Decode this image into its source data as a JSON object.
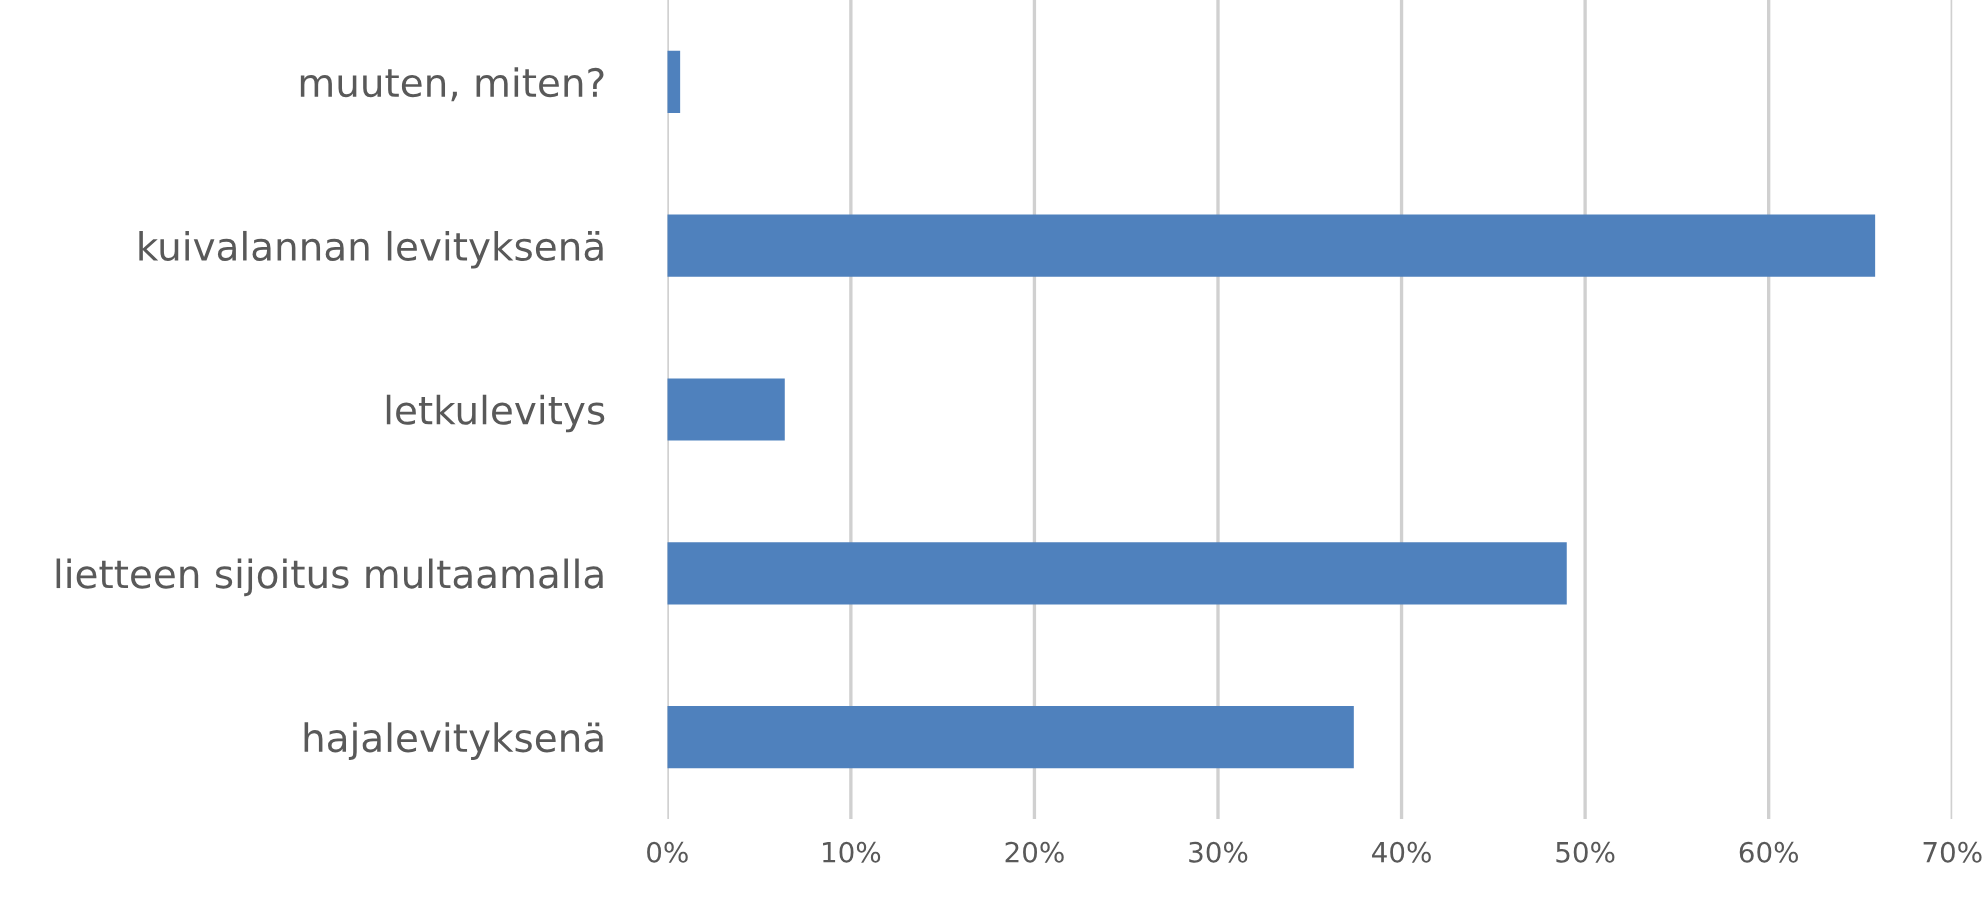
{
  "chart_data": {
    "type": "bar",
    "orientation": "horizontal",
    "categories": [
      "muuten, miten?",
      "kuivalannan levityksenä",
      "letkulevitys",
      "lietteen sijoitus multaamalla",
      "hajalevityksenä"
    ],
    "values": [
      0.7,
      65.8,
      6.4,
      49.0,
      37.4
    ],
    "color": "#4f81bd",
    "xlim": [
      0,
      70
    ],
    "xticks": [
      {
        "value": 0,
        "label": "0%"
      },
      {
        "value": 10,
        "label": "10%"
      },
      {
        "value": 20,
        "label": "20%"
      },
      {
        "value": 30,
        "label": "30%"
      },
      {
        "value": 40,
        "label": "40%"
      },
      {
        "value": 50,
        "label": "50%"
      },
      {
        "value": 60,
        "label": "60%"
      },
      {
        "value": 70,
        "label": "70%"
      }
    ],
    "grid": "x",
    "legend": false
  }
}
